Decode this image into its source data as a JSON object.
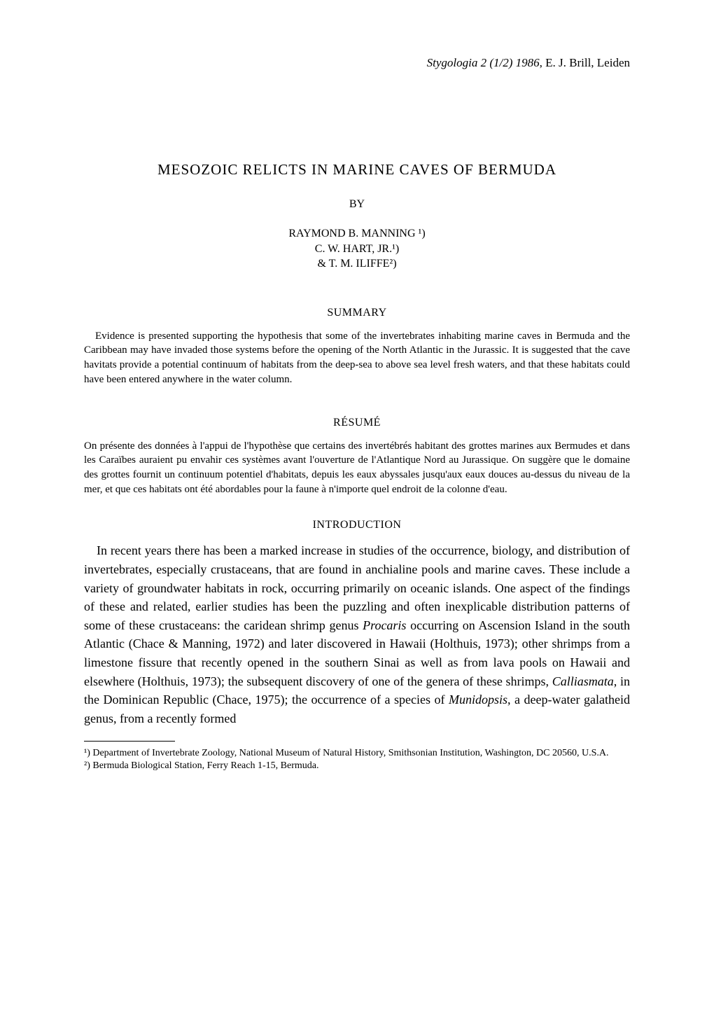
{
  "header": {
    "journal_issue": "Stygologia 2 (1/2) 1986",
    "publisher": ", E. J. Brill, Leiden"
  },
  "title": "MESOZOIC RELICTS IN MARINE CAVES OF BERMUDA",
  "by_label": "BY",
  "authors": {
    "line1": "RAYMOND B. MANNING ¹)",
    "line2": "C. W. HART, JR.¹)",
    "line3": "& T. M. ILIFFE²)"
  },
  "summary": {
    "heading": "SUMMARY",
    "text": "Evidence is presented supporting the hypothesis that some of the invertebrates inhabiting marine caves in Bermuda and the Caribbean may have invaded those systems before the opening of the North Atlantic in the Jurassic. It is suggested that the cave havitats provide a potential continuum of habitats from the deep-sea to above sea level fresh waters, and that these habitats could have been entered anywhere in the water column."
  },
  "resume": {
    "heading": "RÉSUMÉ",
    "text": "On présente des données à l'appui de l'hypothèse que certains des invertébrés habitant des grottes marines aux Bermudes et dans les Caraïbes auraient pu envahir ces systèmes avant l'ouverture de l'Atlantique Nord au Jurassique. On suggère que le domaine des grottes fournit un continuum potentiel d'habitats, depuis les eaux abyssales jusqu'aux eaux douces au-dessus du niveau de la mer, et que ces habitats ont été abordables pour la faune à n'importe quel endroit de la colonne d'eau."
  },
  "introduction": {
    "heading": "INTRODUCTION",
    "text_part1": "In recent years there has been a marked increase in studies of the occurrence, biology, and distribution of invertebrates, especially crustaceans, that are found in anchialine pools and marine caves. These include a variety of groundwater habitats in rock, occurring primarily on oceanic islands. One aspect of the findings of these and related, earlier studies has been the puzzling and often inexplicable distribution patterns of some of these crustaceans: the caridean shrimp genus ",
    "genus1": "Procaris",
    "text_part2": " occurring on Ascension Island in the south Atlantic (Chace & Manning, 1972) and later discovered in Hawaii (Holthuis, 1973); other shrimps from a limestone fissure that recently opened in the southern Sinai as well as from lava pools on Hawaii and elsewhere (Holthuis, 1973); the subsequent discovery of one of the genera of these shrimps, ",
    "genus2": "Calliasmata",
    "text_part3": ", in the Dominican Republic (Chace, 1975); the occurrence of a species of ",
    "genus3": "Munidopsis",
    "text_part4": ", a deep-water galatheid genus, from a recently formed"
  },
  "footnotes": {
    "note1": "¹) Department of Invertebrate Zoology, National Museum of Natural History, Smithsonian Institution, Washington, DC 20560, U.S.A.",
    "note2": "²) Bermuda Biological Station, Ferry Reach 1-15, Bermuda."
  }
}
